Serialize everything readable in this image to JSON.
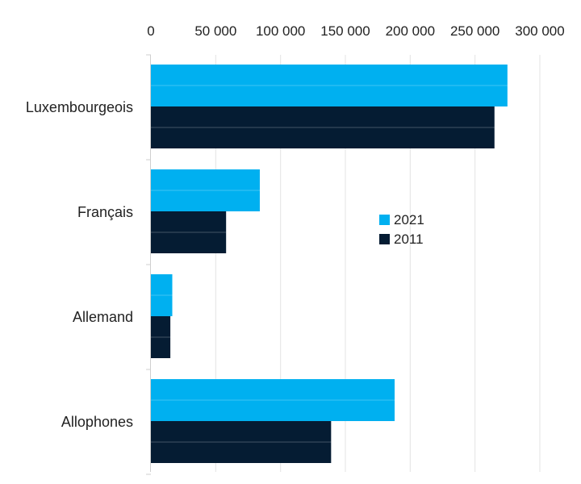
{
  "colors": {
    "series_2021": "#00b0f0",
    "series_2011": "#051c33",
    "grid": "#e3e3e3",
    "axis": "#cfcfcf"
  },
  "chart_data": {
    "type": "bar",
    "orientation": "horizontal",
    "categories": [
      "Luxembourgeois",
      "Français",
      "Allemand",
      "Allophones"
    ],
    "series": [
      {
        "name": "2021",
        "values": [
          275000,
          84000,
          16500,
          188000
        ]
      },
      {
        "name": "2011",
        "values": [
          265000,
          58000,
          15000,
          139000
        ]
      }
    ],
    "x_ticks": [
      0,
      50000,
      100000,
      150000,
      200000,
      250000,
      300000
    ],
    "x_tick_labels": [
      "0",
      "50 000",
      "100 000",
      "150 000",
      "200 000",
      "250 000",
      "300 000"
    ],
    "xlim": [
      0,
      300000
    ],
    "x_axis_position": "top",
    "grid": true,
    "legend_position": "center-right",
    "title": "",
    "xlabel": "",
    "ylabel": ""
  }
}
